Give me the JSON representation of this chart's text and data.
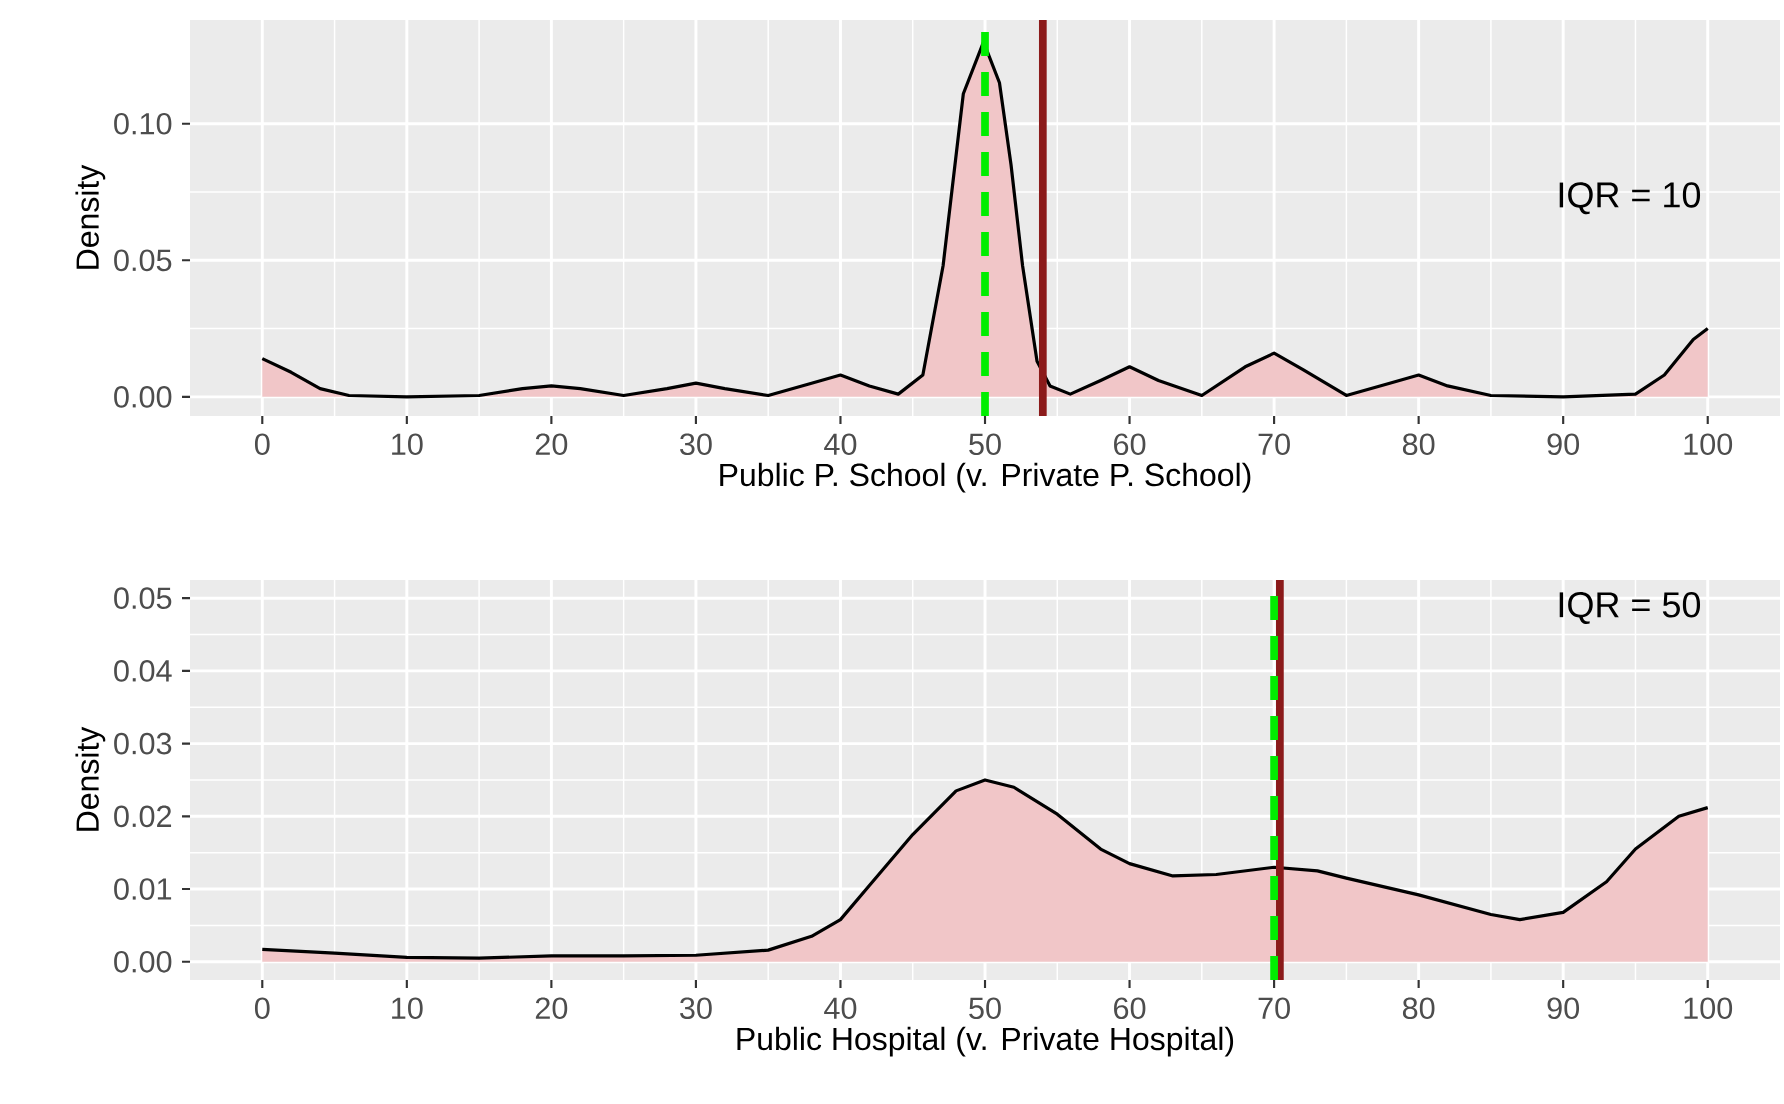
{
  "chart_data": [
    {
      "type": "area",
      "xlabel": "Public P. School (v. Private P. School)",
      "ylabel": "Density",
      "xlim": [
        -5,
        105
      ],
      "ylim": [
        -0.007,
        0.138
      ],
      "xticks": [
        0,
        10,
        20,
        30,
        40,
        50,
        60,
        70,
        80,
        90,
        100
      ],
      "yticks": [
        {
          "value": 0,
          "label": "0.00"
        },
        {
          "value": 0.05,
          "label": "0.05"
        },
        {
          "value": 0.1,
          "label": "0.10"
        }
      ],
      "grid": true,
      "series": [
        {
          "color": "#f1c6c8",
          "x": [
            0,
            2,
            4,
            6,
            10,
            15,
            18,
            20,
            22,
            25,
            28,
            30,
            32,
            35,
            38,
            40,
            42,
            44,
            45.7,
            47.1,
            48.5,
            49.9,
            51,
            51.8,
            52.6,
            53.6,
            54.5,
            55.9,
            58,
            60,
            62,
            65,
            68,
            70,
            72,
            75,
            78,
            80,
            82,
            85,
            90,
            95,
            97,
            99,
            100
          ],
          "values": [
            0.014,
            0.009,
            0.003,
            0.0005,
            0,
            0.0005,
            0.003,
            0.004,
            0.003,
            0.0005,
            0.003,
            0.005,
            0.003,
            0.0005,
            0.005,
            0.008,
            0.004,
            0.001,
            0.008,
            0.048,
            0.111,
            0.13,
            0.115,
            0.085,
            0.048,
            0.013,
            0.004,
            0.001,
            0.006,
            0.011,
            0.006,
            0.0005,
            0.011,
            0.016,
            0.01,
            0.0005,
            0.005,
            0.008,
            0.004,
            0.0005,
            0,
            0.001,
            0.008,
            0.021,
            0.025
          ]
        }
      ],
      "ref_lines": [
        {
          "axis": "x",
          "value": 54,
          "color": "#8b1a1a",
          "line_style": "solid"
        },
        {
          "axis": "x",
          "value": 50,
          "color": "#00ee00",
          "line_style": "dashed"
        }
      ],
      "annotations": [
        "IQR = 10"
      ]
    },
    {
      "type": "area",
      "xlabel": "Public Hospital (v. Private Hospital)",
      "ylabel": "Density",
      "xlim": [
        -5,
        105
      ],
      "ylim": [
        -0.0025,
        0.0525
      ],
      "xticks": [
        0,
        10,
        20,
        30,
        40,
        50,
        60,
        70,
        80,
        90,
        100
      ],
      "yticks": [
        {
          "value": 0,
          "label": "0.00"
        },
        {
          "value": 0.01,
          "label": "0.01"
        },
        {
          "value": 0.02,
          "label": "0.02"
        },
        {
          "value": 0.03,
          "label": "0.03"
        },
        {
          "value": 0.04,
          "label": "0.04"
        },
        {
          "value": 0.05,
          "label": "0.05"
        }
      ],
      "grid": true,
      "series": [
        {
          "color": "#f1c6c8",
          "x": [
            0,
            5,
            10,
            15,
            20,
            25,
            30,
            35,
            38,
            40,
            42,
            45,
            48,
            50,
            52,
            55,
            58,
            60,
            63,
            66,
            70,
            73,
            75,
            80,
            85,
            87,
            90,
            93,
            95,
            98,
            100
          ],
          "values": [
            0.0017,
            0.0012,
            0.0006,
            0.0005,
            0.0008,
            0.0008,
            0.0009,
            0.0016,
            0.0035,
            0.0058,
            0.0105,
            0.0175,
            0.0235,
            0.025,
            0.024,
            0.0203,
            0.0155,
            0.0135,
            0.0118,
            0.012,
            0.013,
            0.0125,
            0.0115,
            0.0092,
            0.0065,
            0.0058,
            0.0068,
            0.011,
            0.0155,
            0.02,
            0.0212
          ]
        }
      ],
      "ref_lines": [
        {
          "axis": "x",
          "value": 70.4,
          "color": "#8b1a1a",
          "line_style": "solid"
        },
        {
          "axis": "x",
          "value": 70,
          "color": "#00ee00",
          "line_style": "dashed"
        }
      ],
      "annotations": [
        "IQR = 50"
      ]
    }
  ]
}
